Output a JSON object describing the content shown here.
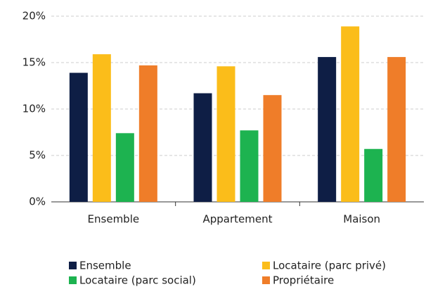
{
  "chart_data": {
    "type": "bar",
    "categories": [
      "Ensemble",
      "Appartement",
      "Maison"
    ],
    "series": [
      {
        "name": "Ensemble",
        "color": "#0e1e45",
        "values": [
          13.9,
          11.7,
          15.6
        ]
      },
      {
        "name": "Locataire (parc privé)",
        "color": "#fbbd1a",
        "values": [
          15.9,
          14.6,
          18.9
        ]
      },
      {
        "name": "Locataire (parc social)",
        "color": "#1db350",
        "values": [
          7.4,
          7.7,
          5.7
        ]
      },
      {
        "name": "Propriétaire",
        "color": "#ef7d29",
        "values": [
          14.7,
          11.5,
          15.6
        ]
      }
    ],
    "ylim": [
      0,
      20
    ],
    "yticks": [
      {
        "value": 0,
        "label": "0%"
      },
      {
        "value": 5,
        "label": "5%"
      },
      {
        "value": 10,
        "label": "10%"
      },
      {
        "value": 15,
        "label": "15%"
      },
      {
        "value": 20,
        "label": "20%"
      }
    ],
    "grid": true,
    "legend": "bottom"
  }
}
